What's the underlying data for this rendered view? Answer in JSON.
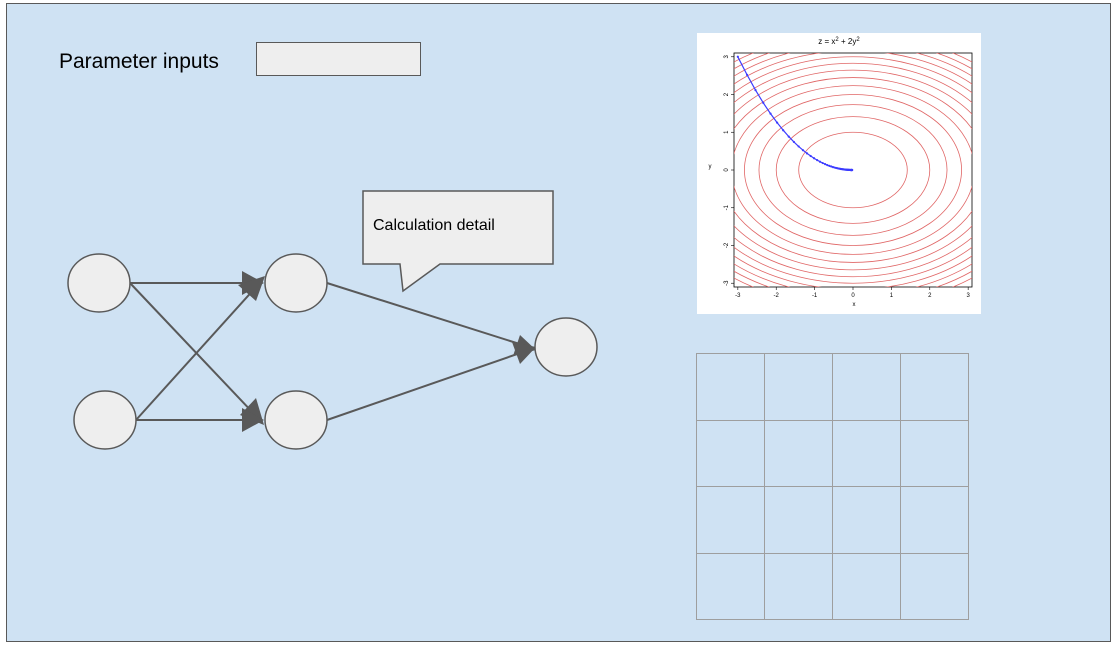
{
  "parameters": {
    "label": "Parameter inputs",
    "input_value": ""
  },
  "callout": {
    "text": "Calculation detail"
  },
  "contour_plot": {
    "title_main": "z = x",
    "title_sup1": "2",
    "title_mid": " + 2y",
    "title_sup2": "2",
    "xlabel": "x",
    "ylabel": "y",
    "x_ticks": [
      "-3",
      "-2",
      "-1",
      "0",
      "1",
      "2",
      "3"
    ],
    "y_ticks": [
      "3",
      "2",
      "1",
      "0",
      "-1",
      "-2",
      "-3"
    ],
    "contour_color": "#e06666",
    "path_color": "#3c3cff"
  },
  "colors": {
    "background": "#cfe2f3",
    "node_fill": "#eeeeee",
    "stroke": "#595959"
  }
}
